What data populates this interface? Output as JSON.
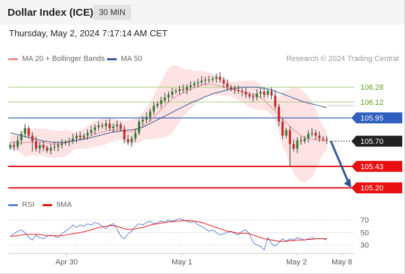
{
  "header": {
    "title": "Dollar Index (ICE)",
    "interval": "30 MIN"
  },
  "datetime": "Thursday, May 2, 2024 7:17:14 AM CET",
  "legend": {
    "ma20_label": "MA 20 + Bollinger Bands",
    "ma50_label": "MA 50",
    "copyright": "Research © 2024 Trading Central",
    "rsi_label": "RSI",
    "ma9_label": "9MA"
  },
  "colors": {
    "ma20": "#f08c8c",
    "ma50": "#2f5597",
    "band_fill": "#fde0e0",
    "up": "#2e7d32",
    "down": "#c62828",
    "green_level": "#a5cf7a",
    "green_text": "#5a9e1a",
    "blue_level": "#2f5fbf",
    "red_level": "#e81010",
    "current_bg": "#222222",
    "arrow": "#2f5597",
    "rsi": "#5a7fd6",
    "rsi_ma": "#e81010"
  },
  "chart_data": {
    "type": "candlestick",
    "xaxis_ticks": [
      "Apr 30",
      "May 1",
      "May 2",
      "May 8"
    ],
    "y_range": [
      105.15,
      106.48
    ],
    "grid": false,
    "last_price": 105.7,
    "levels": [
      {
        "value": 106.28,
        "label": "106.28",
        "kind": "resistance"
      },
      {
        "value": 106.12,
        "label": "106.12",
        "kind": "resistance"
      },
      {
        "value": 105.95,
        "label": "105.95",
        "kind": "pivot"
      },
      {
        "value": 105.7,
        "label": "105.70",
        "kind": "current"
      },
      {
        "value": 105.43,
        "label": "105.43",
        "kind": "support"
      },
      {
        "value": 105.2,
        "label": "105.20",
        "kind": "target"
      }
    ],
    "target_value": 105.2,
    "close": [
      105.66,
      105.64,
      105.71,
      105.78,
      105.84,
      105.76,
      105.7,
      105.62,
      105.66,
      105.63,
      105.6,
      105.63,
      105.64,
      105.66,
      105.68,
      105.69,
      105.7,
      105.73,
      105.76,
      105.74,
      105.76,
      105.79,
      105.82,
      105.85,
      105.87,
      105.86,
      105.89,
      105.84,
      105.86,
      105.88,
      105.83,
      105.72,
      105.69,
      105.73,
      105.79,
      105.91,
      105.93,
      105.96,
      106.02,
      106.08,
      106.1,
      106.14,
      106.17,
      106.2,
      106.23,
      106.24,
      106.26,
      106.25,
      106.28,
      106.3,
      106.32,
      106.33,
      106.35,
      106.36,
      106.36,
      106.37,
      106.39,
      106.36,
      106.32,
      106.28,
      106.26,
      106.25,
      106.24,
      106.23,
      106.2,
      106.18,
      106.17,
      106.21,
      106.23,
      106.2,
      106.24,
      106.19,
      106.07,
      105.91,
      105.76,
      105.82,
      105.67,
      105.62,
      105.71,
      105.7,
      105.73,
      105.78,
      105.79,
      105.76,
      105.73,
      105.72,
      105.71
    ],
    "ma20": [
      105.69,
      105.69,
      105.68,
      105.68,
      105.69,
      105.69,
      105.69,
      105.69,
      105.69,
      105.69,
      105.68,
      105.67,
      105.67,
      105.67,
      105.67,
      105.68,
      105.69,
      105.7,
      105.71,
      105.72,
      105.73,
      105.74,
      105.76,
      105.78,
      105.79,
      105.8,
      105.81,
      105.82,
      105.82,
      105.82,
      105.82,
      105.81,
      105.8,
      105.8,
      105.81,
      105.83,
      105.86,
      105.89,
      105.92,
      105.96,
      106.0,
      106.04,
      106.08,
      106.12,
      106.15,
      106.18,
      106.2,
      106.22,
      106.24,
      106.26,
      106.27,
      106.29,
      106.3,
      106.31,
      106.31,
      106.31,
      106.3,
      106.29,
      106.28,
      106.27,
      106.26,
      106.25,
      106.24,
      106.23,
      106.22,
      106.21,
      106.2,
      106.19,
      106.17,
      106.14,
      106.1,
      106.06,
      106.02,
      105.98,
      105.94,
      105.9,
      105.86,
      105.82,
      105.79,
      105.76,
      105.74,
      105.73,
      105.72,
      105.72,
      105.71,
      105.71,
      105.7
    ],
    "ma50": [
      105.79,
      105.78,
      105.77,
      105.76,
      105.75,
      105.74,
      105.73,
      105.72,
      105.71,
      105.7,
      105.7,
      105.69,
      105.69,
      105.69,
      105.69,
      105.69,
      105.7,
      105.7,
      105.71,
      105.72,
      105.72,
      105.73,
      105.74,
      105.75,
      105.76,
      105.77,
      105.78,
      105.79,
      105.8,
      105.8,
      105.81,
      105.81,
      105.82,
      105.82,
      105.83,
      105.84,
      105.85,
      105.87,
      105.89,
      105.91,
      105.93,
      105.95,
      105.97,
      105.99,
      106.01,
      106.03,
      106.05,
      106.07,
      106.09,
      106.11,
      106.13,
      106.14,
      106.16,
      106.18,
      106.19,
      106.21,
      106.22,
      106.23,
      106.24,
      106.25,
      106.26,
      106.27,
      106.27,
      106.28,
      106.28,
      106.28,
      106.28,
      106.28,
      106.27,
      106.27,
      106.26,
      106.25,
      106.24,
      106.22,
      106.21,
      106.19,
      106.18,
      106.16,
      106.15,
      106.13,
      106.12,
      106.11,
      106.1,
      106.09,
      106.08,
      106.07,
      106.06
    ],
    "rsi_levels": [
      70,
      50,
      30
    ],
    "rsi_range": [
      22,
      80
    ],
    "rsi": [
      44,
      48,
      52,
      54,
      50,
      42,
      38,
      46,
      42,
      40,
      44,
      46,
      44,
      42,
      48,
      52,
      56,
      62,
      58,
      62,
      60,
      64,
      62,
      66,
      64,
      60,
      56,
      62,
      64,
      56,
      44,
      40,
      48,
      52,
      60,
      64,
      62,
      66,
      68,
      64,
      66,
      68,
      66,
      70,
      68,
      70,
      72,
      70,
      68,
      66,
      68,
      62,
      60,
      56,
      52,
      54,
      50,
      46,
      48,
      50,
      52,
      48,
      46,
      52,
      54,
      48,
      34,
      30,
      28,
      22,
      42,
      32,
      28,
      34,
      40,
      36,
      40,
      38,
      42,
      40,
      38,
      40,
      42,
      40,
      40,
      40,
      38
    ],
    "rsi_ma": [
      44,
      44,
      45,
      46,
      47,
      47,
      47,
      47,
      47,
      46,
      45,
      45,
      45,
      45,
      45,
      46,
      47,
      48,
      49,
      50,
      51,
      53,
      54,
      56,
      58,
      59,
      60,
      61,
      61,
      60,
      58,
      56,
      55,
      55,
      56,
      57,
      58,
      60,
      62,
      63,
      64,
      65,
      66,
      67,
      67,
      68,
      68,
      69,
      69,
      69,
      68,
      67,
      66,
      64,
      62,
      60,
      58,
      56,
      54,
      52,
      51,
      50,
      49,
      49,
      49,
      48,
      46,
      44,
      42,
      40,
      39,
      38,
      37,
      36,
      36,
      36,
      37,
      37,
      38,
      38,
      38,
      39,
      39,
      40,
      40,
      40,
      40
    ]
  }
}
